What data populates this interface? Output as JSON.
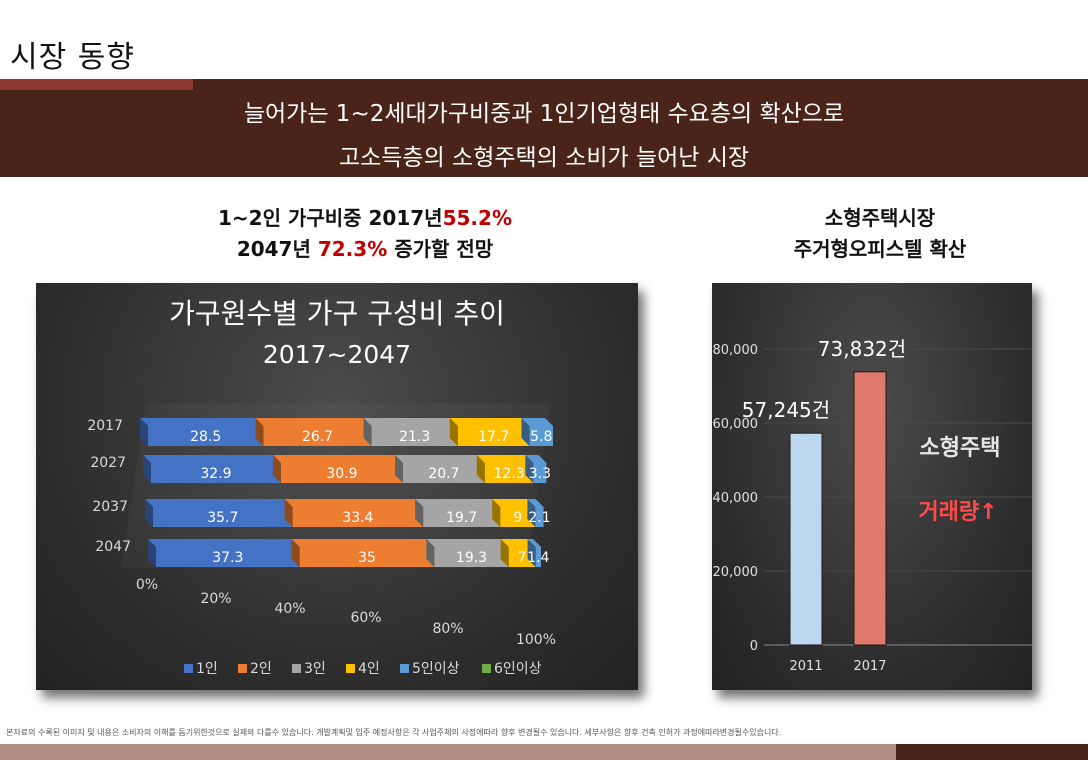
{
  "page": {
    "title": "시장 동향",
    "banner_line1": "늘어가는 1~2세대가구비중과 1인기업형태 수요층의 확산으로",
    "banner_line2": "고소득층의 소형주택의 소비가 늘어난 시장",
    "left_headline": {
      "l1_a": "1~2인 가구비중 2017년",
      "l1_b": "55.2%",
      "l2_a": "2047년 ",
      "l2_b": "72.3%",
      "l2_c": " 증가할 전망"
    },
    "right_headline": {
      "l1": "소형주택시장",
      "l2": "주거형오피스텔 확산"
    },
    "footer_note": "본자료의 수록된 이미지 및 내용은 소비자의 이해를 돕기위한것으로 실제와 다를수 있습니다. 개발계획및 입주 예정사항은 각 사업주체의 사정에따라 향후 변경될수 있습니다. 세부사항은 향후 건축 인허가 과정에따라변경될수있습니다."
  },
  "colors": {
    "banner": "#4a2418",
    "accent": "#8c3a30",
    "red": "#c00000",
    "series": [
      "#4472c4",
      "#ed7d31",
      "#a5a5a5",
      "#ffc000",
      "#5b9bd5",
      "#70ad47"
    ],
    "bar_2011": "#bdd7ee",
    "bar_2017": "#e07a6e"
  },
  "chart_data": [
    {
      "type": "bar",
      "orientation": "horizontal",
      "stacked": "percent",
      "style": "3d",
      "title": "가구원수별 가구 구성비 추이",
      "subtitle": "2017~2047",
      "categories": [
        "2017",
        "2027",
        "2037",
        "2047"
      ],
      "series": [
        {
          "name": "1인",
          "values": [
            28.5,
            32.9,
            35.7,
            37.3
          ]
        },
        {
          "name": "2인",
          "values": [
            26.7,
            30.9,
            33.4,
            35
          ]
        },
        {
          "name": "3인",
          "values": [
            21.3,
            20.7,
            19.7,
            19.3
          ]
        },
        {
          "name": "4인",
          "values": [
            17.7,
            12.3,
            9,
            7
          ]
        },
        {
          "name": "5인이상",
          "values": [
            5.8,
            3.3,
            2.1,
            1.4
          ]
        },
        {
          "name": "6인이상",
          "values": [
            0,
            0,
            0,
            0
          ]
        }
      ],
      "x_ticks": [
        "0%",
        "20%",
        "40%",
        "60%",
        "80%",
        "100%"
      ],
      "xlim": [
        0,
        100
      ],
      "legend": "bottom"
    },
    {
      "type": "bar",
      "categories": [
        "2011",
        "2017"
      ],
      "values": [
        57245,
        73832
      ],
      "data_labels": [
        "57,245건",
        "73,832건"
      ],
      "y_ticks": [
        "0",
        "20,000",
        "40,000",
        "60,000",
        "80,000"
      ],
      "ylim": [
        0,
        80000
      ],
      "annotation_1": "소형주택",
      "annotation_2": "거래량↑",
      "grid": true
    }
  ]
}
